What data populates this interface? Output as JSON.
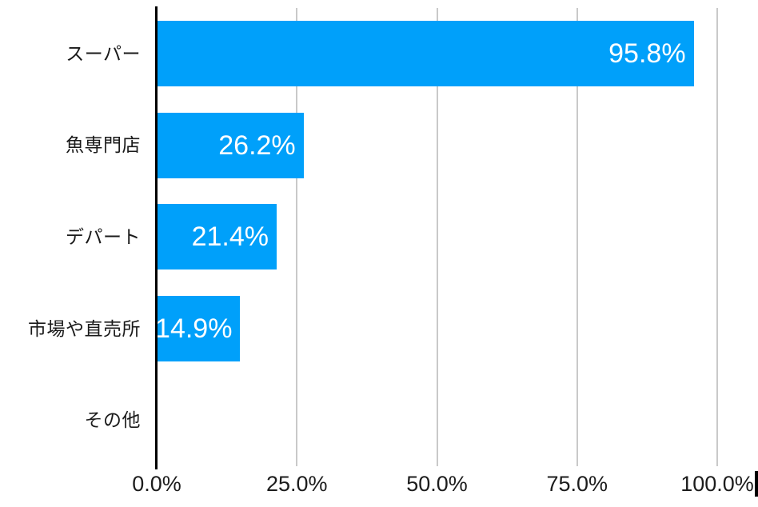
{
  "chart_data": {
    "type": "bar",
    "orientation": "horizontal",
    "title": "",
    "xlabel": "",
    "ylabel": "",
    "categories": [
      "スーパー",
      "魚専門店",
      "デパート",
      "市場や直売所",
      "その他"
    ],
    "values": [
      95.8,
      26.2,
      21.4,
      14.9,
      0
    ],
    "value_labels": [
      "95.8%",
      "26.2%",
      "21.4%",
      "14.9%",
      ""
    ],
    "x_ticks": [
      {
        "value": 0,
        "label": "0.0%"
      },
      {
        "value": 25,
        "label": "25.0%"
      },
      {
        "value": 50,
        "label": "50.0%"
      },
      {
        "value": 75,
        "label": "75.0%"
      },
      {
        "value": 100,
        "label": "100.0%"
      }
    ],
    "xlim": [
      0,
      100
    ],
    "grid": "vertical gridlines at ticks, behind bars",
    "legend": "none",
    "colors": {
      "bar": "#00A0FA",
      "bar_value_label": "#FFFFFF",
      "axis_line": "#000000",
      "gridline": "#C9C9C9",
      "tick_label": "#1C1C1C",
      "category_label": "#1A1A1A",
      "background": "#FFFFFF",
      "cursor_mark": "#000000"
    }
  }
}
